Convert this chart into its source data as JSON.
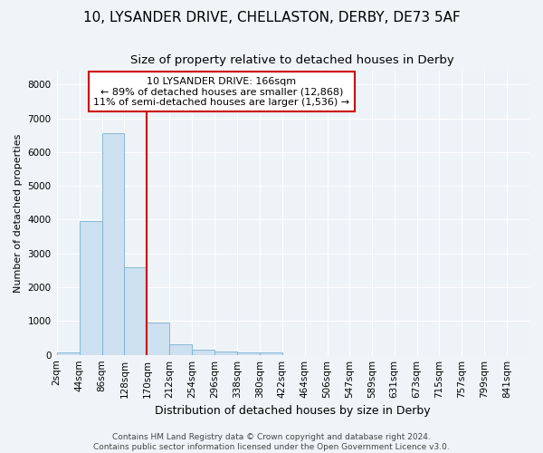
{
  "title": "10, LYSANDER DRIVE, CHELLASTON, DERBY, DE73 5AF",
  "subtitle": "Size of property relative to detached houses in Derby",
  "xlabel": "Distribution of detached houses by size in Derby",
  "ylabel": "Number of detached properties",
  "bar_color": "#cce0f0",
  "bar_edge_color": "#7ab0d0",
  "bin_edges": [
    2,
    44,
    86,
    128,
    170,
    212,
    254,
    296,
    338,
    380,
    422,
    464,
    506,
    547,
    589,
    631,
    673,
    715,
    757,
    799,
    841
  ],
  "bin_labels": [
    "2sqm",
    "44sqm",
    "86sqm",
    "128sqm",
    "170sqm",
    "212sqm",
    "254sqm",
    "296sqm",
    "338sqm",
    "380sqm",
    "422sqm",
    "464sqm",
    "506sqm",
    "547sqm",
    "589sqm",
    "631sqm",
    "673sqm",
    "715sqm",
    "757sqm",
    "799sqm",
    "841sqm"
  ],
  "bar_heights": [
    75,
    3950,
    6550,
    2600,
    950,
    320,
    140,
    100,
    60,
    60,
    0,
    0,
    0,
    0,
    0,
    0,
    0,
    0,
    0,
    0
  ],
  "ylim_max": 8400,
  "yticks": [
    0,
    1000,
    2000,
    3000,
    4000,
    5000,
    6000,
    7000,
    8000
  ],
  "vline_x": 170,
  "vline_color": "#cc0000",
  "annotation_text": "10 LYSANDER DRIVE: 166sqm\n← 89% of detached houses are smaller (12,868)\n11% of semi-detached houses are larger (1,536) →",
  "annotation_box_edgecolor": "#cc0000",
  "background_color": "#f0f4f8",
  "plot_bg_color": "#eef3f8",
  "grid_color": "#ffffff",
  "title_fontsize": 11,
  "subtitle_fontsize": 9.5,
  "ylabel_fontsize": 8,
  "xlabel_fontsize": 9,
  "tick_fontsize": 7.5,
  "annot_fontsize": 8,
  "footer_fontsize": 6.5,
  "footer_text": "Contains HM Land Registry data © Crown copyright and database right 2024.\nContains public sector information licensed under the Open Government Licence v3.0."
}
